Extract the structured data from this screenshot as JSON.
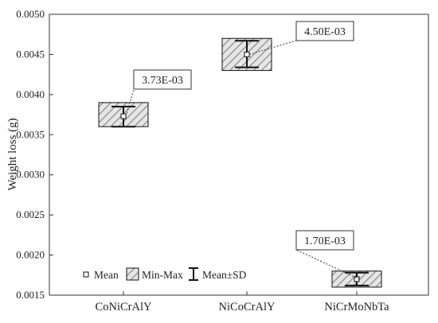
{
  "chart_data": {
    "type": "box",
    "title": "",
    "xlabel": "",
    "ylabel": "Weight loss (g)",
    "ylim": [
      0.0015,
      0.005
    ],
    "yticks": [
      "0.0050",
      "0.0045",
      "0.0040",
      "0.0035",
      "0.0030",
      "0.0025",
      "0.0020",
      "0.0015"
    ],
    "ytick_values": [
      0.005,
      0.0045,
      0.004,
      0.0035,
      0.003,
      0.0025,
      0.002,
      0.0015
    ],
    "categories": [
      "CoNiCrAlY",
      "NiCoCrAlY",
      "NiCrMoNbTa"
    ],
    "series": [
      {
        "category": "CoNiCrAlY",
        "mean": 0.00373,
        "min": 0.0036,
        "max": 0.0039,
        "sd_low": 0.0036,
        "sd_high": 0.00385,
        "label": "3.73E-03"
      },
      {
        "category": "NiCoCrAlY",
        "mean": 0.0045,
        "min": 0.0043,
        "max": 0.0047,
        "sd_low": 0.00434,
        "sd_high": 0.00467,
        "label": "4.50E-03"
      },
      {
        "category": "NiCrMoNbTa",
        "mean": 0.0017,
        "min": 0.0016,
        "max": 0.0018,
        "sd_low": 0.00162,
        "sd_high": 0.00178,
        "label": "1.70E-03"
      }
    ],
    "legend": {
      "position": "bottom-left",
      "items": [
        "Mean",
        "Min-Max",
        "Mean±SD"
      ]
    },
    "grid": false,
    "colors": {
      "box_fill": "#e4e4e4",
      "hatch": "#9a9a9a",
      "stroke": "#111111"
    }
  }
}
